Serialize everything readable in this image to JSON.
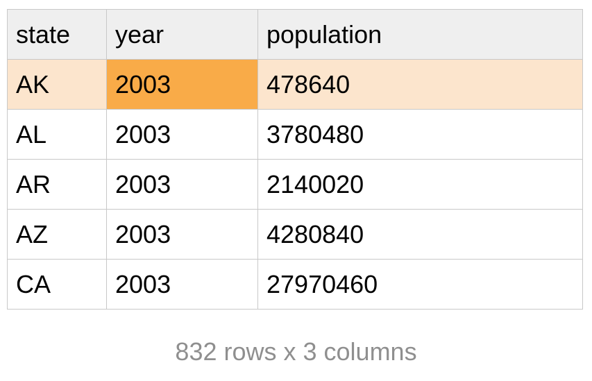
{
  "table": {
    "columns": [
      "state",
      "year",
      "population"
    ],
    "rows": [
      [
        "AK",
        "2003",
        "478640"
      ],
      [
        "AL",
        "2003",
        "3780480"
      ],
      [
        "AR",
        "2003",
        "2140020"
      ],
      [
        "AZ",
        "2003",
        "4280840"
      ],
      [
        "CA",
        "2003",
        "27970460"
      ]
    ],
    "selection": {
      "active_cell_color": "#f9ab48",
      "selected_row_color": "#fce5cd"
    },
    "header_background": "#efefef",
    "border_color": "#c8c8c8"
  },
  "footer": {
    "summary": "832 rows x 3 columns"
  }
}
